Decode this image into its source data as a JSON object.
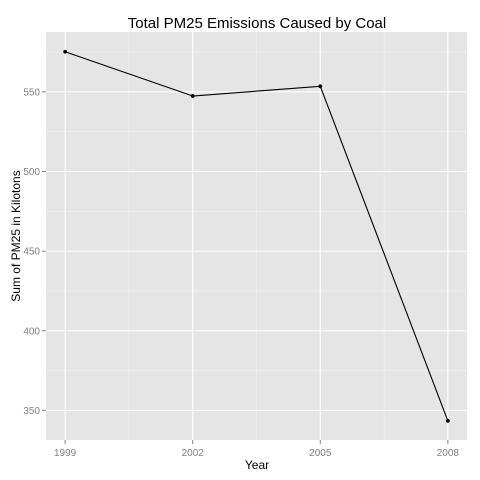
{
  "chart_data": {
    "type": "line",
    "title": "Total PM25 Emissions Caused by Coal",
    "xlabel": "Year",
    "ylabel": "Sum of PM25 in Kilotons",
    "x": [
      1999,
      2002,
      2005,
      2008
    ],
    "series": [
      {
        "name": "",
        "values": [
          575.2,
          547.4,
          553.5,
          343.4
        ]
      }
    ],
    "xlim": [
      1998.55,
      2008.45
    ],
    "ylim": [
      331.4,
      587.6
    ],
    "x_ticks": [
      1999,
      2002,
      2005,
      2008
    ],
    "x_tick_labels": [
      "1999",
      "2002",
      "2005",
      "2008"
    ],
    "x_minor_ticks": [
      2000.5,
      2003.5,
      2006.5
    ],
    "y_ticks": [
      350,
      400,
      450,
      500,
      550
    ],
    "y_tick_labels": [
      "350",
      "400",
      "450",
      "500",
      "550"
    ],
    "y_minor_ticks": [
      375,
      425,
      475,
      525,
      575
    ],
    "grid": true,
    "legend": "none",
    "colors": {
      "panel_background": "#e5e5e5",
      "grid_major": "#ffffff",
      "grid_minor": "#f2f2f2",
      "line": "#000000",
      "tick_label": "#7f7f7f",
      "text": "#000000"
    }
  }
}
